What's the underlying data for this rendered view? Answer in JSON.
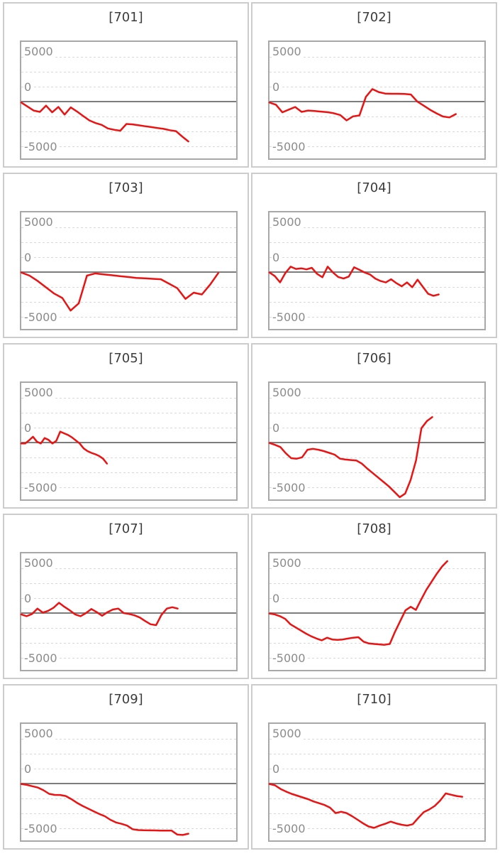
{
  "colors": {
    "line": "#ec1212",
    "zero_line": "#7c7c7c",
    "gridline": "#d9d9d9",
    "plot_border": "#a8a8a8",
    "cell_border": "#cccccc",
    "title_text": "#3b3b3b",
    "tick_text": "#8b8b8b",
    "background": "#ffffff"
  },
  "chart_common": {
    "type": "line",
    "y_tick_labels": [
      "5000",
      "0",
      "-5000"
    ],
    "y_tick_values": [
      5000,
      0,
      -5000
    ],
    "ylim": [
      -6700,
      6700
    ],
    "grid": "dotted horizontal lines, 7 levels evenly spaced",
    "zero_axis": "solid dark gray horizontal line at 0",
    "x_axis": "no ticks or labels shown",
    "legend": "none"
  },
  "chart_data": [
    {
      "type": "line",
      "title": "[701]",
      "x_extent": 0.78,
      "values": [
        -100,
        -550,
        -1000,
        -1150,
        -450,
        -1200,
        -600,
        -1450,
        -650,
        -1100,
        -1600,
        -2100,
        -2400,
        -2600,
        -3000,
        -3150,
        -3250,
        -2500,
        -2550,
        -2650,
        -2750,
        -2850,
        -2950,
        -3050,
        -3200,
        -3300,
        -3900,
        -4450
      ]
    },
    {
      "type": "line",
      "title": "[702]",
      "x_extent": 0.87,
      "values": [
        -100,
        -350,
        -1200,
        -900,
        -600,
        -1150,
        -1000,
        -1050,
        -1120,
        -1180,
        -1300,
        -1500,
        -2100,
        -1650,
        -1550,
        530,
        1400,
        1060,
        900,
        870,
        870,
        850,
        790,
        0,
        -450,
        -920,
        -1320,
        -1670,
        -1770,
        -1400
      ]
    },
    {
      "type": "line",
      "title": "[703]",
      "x_extent": 0.92,
      "values": [
        -50,
        -400,
        -1000,
        -1700,
        -2400,
        -2900,
        -4300,
        -3500,
        -400,
        -150,
        -250,
        -350,
        -450,
        -550,
        -650,
        -700,
        -750,
        -800,
        -1300,
        -1800,
        -3000,
        -2300,
        -2500,
        -1400,
        -100
      ]
    },
    {
      "type": "line",
      "title": "[704]",
      "x_extent": 0.79,
      "values": [
        -50,
        -450,
        -1150,
        -100,
        600,
        350,
        420,
        300,
        480,
        -200,
        -580,
        600,
        -50,
        -550,
        -720,
        -500,
        530,
        250,
        -50,
        -270,
        -720,
        -1000,
        -1160,
        -800,
        -1240,
        -1590,
        -1160,
        -1690,
        -850,
        -1640,
        -2430,
        -2650,
        -2500
      ]
    },
    {
      "type": "line",
      "title": "[705]",
      "x_extent": 0.4,
      "values": [
        -100,
        -100,
        250,
        650,
        100,
        -100,
        500,
        300,
        -100,
        200,
        1220,
        1030,
        850,
        580,
        240,
        -100,
        -650,
        -950,
        -1150,
        -1300,
        -1500,
        -1800,
        -2350
      ]
    },
    {
      "type": "line",
      "title": "[706]",
      "x_extent": 0.76,
      "values": [
        -50,
        -250,
        -500,
        -1200,
        -1750,
        -1800,
        -1650,
        -800,
        -700,
        -800,
        -950,
        -1150,
        -1350,
        -1800,
        -1900,
        -1950,
        -2000,
        -2350,
        -2900,
        -3400,
        -3900,
        -4400,
        -4900,
        -5500,
        -6100,
        -5700,
        -4200,
        -2000,
        1600,
        2400,
        2850
      ]
    },
    {
      "type": "line",
      "title": "[707]",
      "x_extent": 0.73,
      "values": [
        -150,
        -350,
        -100,
        500,
        50,
        250,
        600,
        1150,
        700,
        300,
        -150,
        -350,
        0,
        450,
        100,
        -300,
        100,
        400,
        500,
        0,
        -100,
        -250,
        -500,
        -900,
        -1250,
        -1350,
        -200,
        500,
        650,
        500
      ]
    },
    {
      "type": "line",
      "title": "[708]",
      "x_extent": 0.83,
      "values": [
        -50,
        -150,
        -350,
        -650,
        -1250,
        -1600,
        -1950,
        -2300,
        -2600,
        -2850,
        -3050,
        -2750,
        -2950,
        -3000,
        -2950,
        -2850,
        -2750,
        -2700,
        -3200,
        -3400,
        -3450,
        -3500,
        -3550,
        -3450,
        -2100,
        -900,
        300,
        700,
        350,
        1500,
        2600,
        3500,
        4400,
        5200,
        5800
      ]
    },
    {
      "type": "line",
      "title": "[709]",
      "x_extent": 0.78,
      "values": [
        -50,
        -150,
        -300,
        -450,
        -750,
        -1150,
        -1270,
        -1280,
        -1400,
        -1750,
        -2150,
        -2500,
        -2800,
        -3100,
        -3400,
        -3650,
        -4050,
        -4350,
        -4500,
        -4700,
        -5100,
        -5200,
        -5220,
        -5230,
        -5240,
        -5250,
        -5250,
        -5260,
        -5700,
        -5750,
        -5600
      ]
    },
    {
      "type": "line",
      "title": "[710]",
      "x_extent": 0.9,
      "values": [
        -50,
        -200,
        -600,
        -900,
        -1150,
        -1350,
        -1550,
        -1750,
        -2000,
        -2200,
        -2400,
        -2700,
        -3300,
        -3150,
        -3300,
        -3650,
        -4050,
        -4450,
        -4800,
        -4950,
        -4700,
        -4500,
        -4250,
        -4450,
        -4600,
        -4700,
        -4550,
        -3850,
        -3200,
        -2900,
        -2500,
        -1900,
        -1100,
        -1250,
        -1400,
        -1480
      ]
    }
  ]
}
